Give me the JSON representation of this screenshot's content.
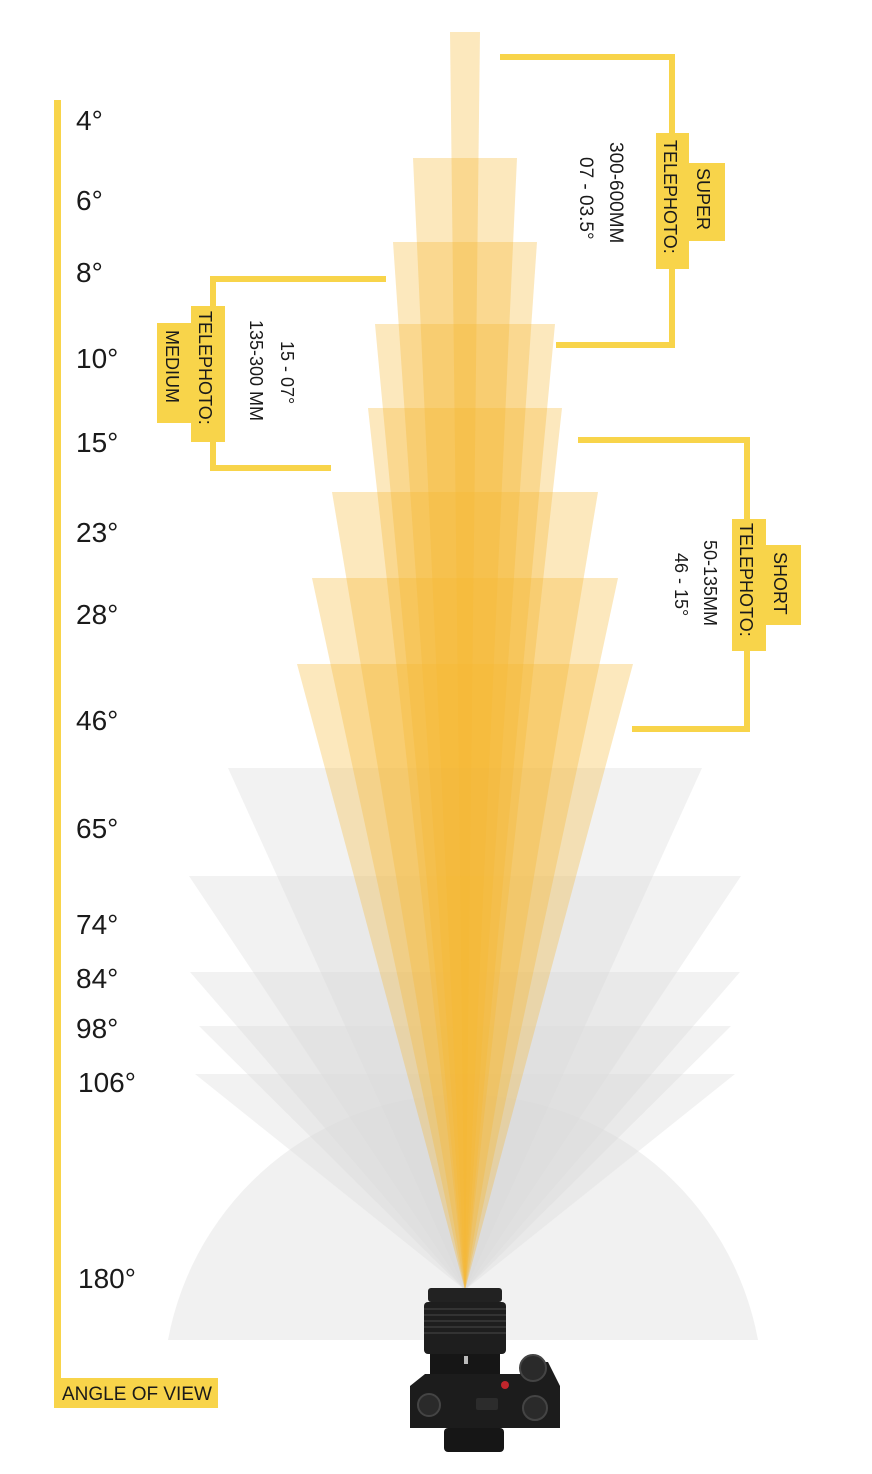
{
  "angles": [
    {
      "label": "4°",
      "degrees": 4,
      "group": "telephoto"
    },
    {
      "label": "6°",
      "degrees": 6,
      "group": "telephoto"
    },
    {
      "label": "8°",
      "degrees": 8,
      "group": "telephoto"
    },
    {
      "label": "10°",
      "degrees": 10,
      "group": "telephoto"
    },
    {
      "label": "15°",
      "degrees": 15,
      "group": "telephoto"
    },
    {
      "label": "23°",
      "degrees": 23,
      "group": "telephoto"
    },
    {
      "label": "28°",
      "degrees": 28,
      "group": "telephoto"
    },
    {
      "label": "46°",
      "degrees": 46,
      "group": "telephoto"
    },
    {
      "label": "65°",
      "degrees": 65,
      "group": "wide"
    },
    {
      "label": "74°",
      "degrees": 74,
      "group": "wide"
    },
    {
      "label": "84°",
      "degrees": 84,
      "group": "wide"
    },
    {
      "label": "98°",
      "degrees": 98,
      "group": "wide"
    },
    {
      "label": "106°",
      "degrees": 106,
      "group": "wide"
    },
    {
      "label": "180°",
      "degrees": 180,
      "group": "wide"
    }
  ],
  "axis_label": "ANGLE OF VIEW",
  "ranges": {
    "super": {
      "title_line1": "SUPER",
      "title_line2": "TELEPHOTO:",
      "focal": "300-600MM",
      "angle": "07 - 03.5°"
    },
    "medium": {
      "title_line1": "MEDIUM",
      "title_line2": "TELEPHOTO:",
      "focal": "135-300 MM",
      "angle": "15 - 07°"
    },
    "short": {
      "title_line1": "SHORT",
      "title_line2": "TELEPHOTO:",
      "focal": "50-135MM",
      "angle": "46 - 15°"
    }
  },
  "colors": {
    "accent": "#f8d44a",
    "telephoto_fill": "#f5b42a",
    "wide_fill": "#d4d4d4",
    "text": "#1a1a1a",
    "camera_body": "#1c1c1c"
  },
  "icons": {
    "camera": "mirrorless-camera-icon"
  }
}
